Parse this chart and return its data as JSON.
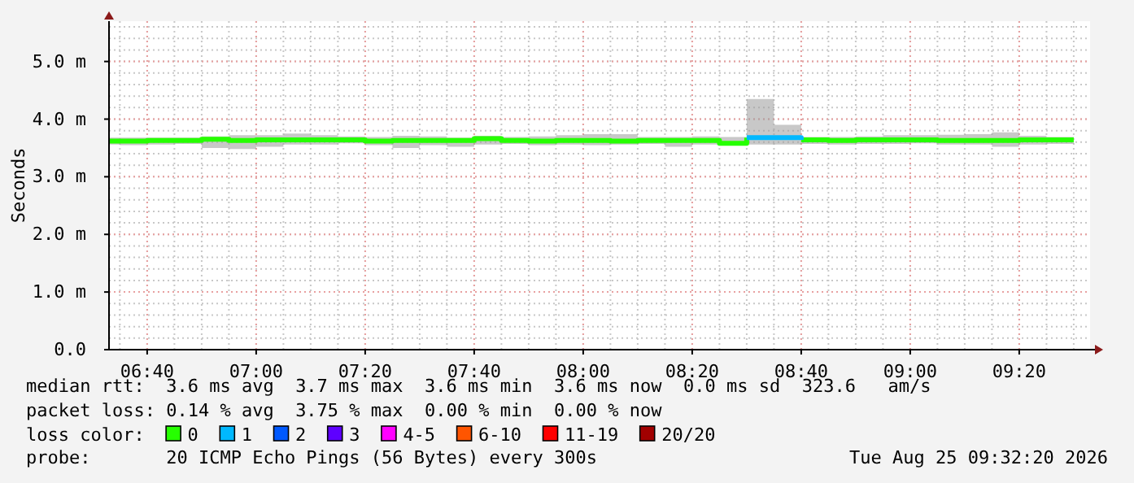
{
  "chart_data": {
    "type": "step",
    "ylabel": "Seconds",
    "legend_title": "loss color:",
    "legend": "bottom",
    "grid": true,
    "xlim": [
      "2026-08-25T06:33",
      "2026-08-25T09:33"
    ],
    "xticks": [
      {
        "value": "2026-08-25T06:40",
        "label": "06:40"
      },
      {
        "value": "2026-08-25T07:00",
        "label": "07:00"
      },
      {
        "value": "2026-08-25T07:20",
        "label": "07:20"
      },
      {
        "value": "2026-08-25T07:40",
        "label": "07:40"
      },
      {
        "value": "2026-08-25T08:00",
        "label": "08:00"
      },
      {
        "value": "2026-08-25T08:20",
        "label": "08:20"
      },
      {
        "value": "2026-08-25T08:40",
        "label": "08:40"
      },
      {
        "value": "2026-08-25T09:00",
        "label": "09:00"
      },
      {
        "value": "2026-08-25T09:20",
        "label": "09:20"
      }
    ],
    "ylim": [
      0,
      5.7
    ],
    "yticks": [
      {
        "value": 0,
        "label": "0.0"
      },
      {
        "value": 1,
        "label": "1.0 m"
      },
      {
        "value": 2,
        "label": "2.0 m"
      },
      {
        "value": 3,
        "label": "3.0 m"
      },
      {
        "value": 4,
        "label": "4.0 m"
      },
      {
        "value": 5,
        "label": "5.0 m"
      }
    ],
    "x": [
      "2026-08-25T06:33",
      "2026-08-25T06:35",
      "2026-08-25T06:40",
      "2026-08-25T06:45",
      "2026-08-25T06:50",
      "2026-08-25T06:55",
      "2026-08-25T07:00",
      "2026-08-25T07:05",
      "2026-08-25T07:10",
      "2026-08-25T07:15",
      "2026-08-25T07:20",
      "2026-08-25T07:25",
      "2026-08-25T07:30",
      "2026-08-25T07:35",
      "2026-08-25T07:40",
      "2026-08-25T07:45",
      "2026-08-25T07:50",
      "2026-08-25T07:55",
      "2026-08-25T08:00",
      "2026-08-25T08:05",
      "2026-08-25T08:10",
      "2026-08-25T08:15",
      "2026-08-25T08:20",
      "2026-08-25T08:25",
      "2026-08-25T08:30",
      "2026-08-25T08:35",
      "2026-08-25T08:40",
      "2026-08-25T08:45",
      "2026-08-25T08:50",
      "2026-08-25T08:55",
      "2026-08-25T09:00",
      "2026-08-25T09:05",
      "2026-08-25T09:10",
      "2026-08-25T09:15",
      "2026-08-25T09:20",
      "2026-08-25T09:25",
      "2026-08-25T09:30"
    ],
    "series": [
      {
        "name": "0",
        "color": "#26ff00",
        "values": [
          3.62,
          3.62,
          3.63,
          3.63,
          3.65,
          3.63,
          3.64,
          3.64,
          3.64,
          3.64,
          3.62,
          3.63,
          3.63,
          3.63,
          3.66,
          3.63,
          3.62,
          3.63,
          3.63,
          3.62,
          3.63,
          3.63,
          3.63,
          3.58,
          3.68,
          null,
          3.64,
          3.63,
          3.64,
          3.64,
          3.64,
          3.63,
          3.63,
          3.63,
          3.64,
          3.64,
          3.64
        ],
        "lower": [
          3.56,
          3.55,
          3.56,
          3.57,
          3.5,
          3.48,
          3.52,
          3.56,
          3.56,
          3.58,
          3.55,
          3.5,
          3.55,
          3.52,
          3.56,
          3.57,
          3.55,
          3.56,
          3.55,
          3.56,
          3.57,
          3.52,
          3.56,
          3.56,
          3.56,
          3.56,
          3.57,
          3.56,
          3.57,
          3.57,
          3.58,
          3.56,
          3.56,
          3.52,
          3.56,
          3.57,
          3.57
        ],
        "upper": [
          3.68,
          3.68,
          3.68,
          3.68,
          3.7,
          3.72,
          3.72,
          3.75,
          3.72,
          3.7,
          3.69,
          3.71,
          3.7,
          3.68,
          3.71,
          3.69,
          3.7,
          3.72,
          3.74,
          3.74,
          3.69,
          3.69,
          3.7,
          3.69,
          4.35,
          3.9,
          3.69,
          3.69,
          3.7,
          3.72,
          3.72,
          3.73,
          3.74,
          3.77,
          3.71,
          3.69,
          3.69
        ]
      },
      {
        "name": "1",
        "color": "#00b8ff",
        "values": [
          null,
          null,
          null,
          null,
          null,
          null,
          null,
          null,
          null,
          null,
          null,
          null,
          null,
          null,
          null,
          null,
          null,
          null,
          null,
          null,
          null,
          null,
          null,
          null,
          3.68,
          3.68,
          3.64,
          null,
          null,
          null,
          null,
          null,
          null,
          null,
          null,
          null,
          null
        ]
      },
      {
        "name": "2",
        "color": "#0059ff",
        "values": [
          null,
          null,
          null,
          null,
          null,
          null,
          null,
          null,
          null,
          null,
          null,
          null,
          null,
          null,
          null,
          null,
          null,
          null,
          null,
          null,
          null,
          null,
          null,
          null,
          null,
          null,
          null,
          null,
          null,
          null,
          null,
          null,
          null,
          null,
          null,
          null,
          null
        ]
      },
      {
        "name": "3",
        "color": "#5e00ff",
        "values": [
          null,
          null,
          null,
          null,
          null,
          null,
          null,
          null,
          null,
          null,
          null,
          null,
          null,
          null,
          null,
          null,
          null,
          null,
          null,
          null,
          null,
          null,
          null,
          null,
          null,
          null,
          null,
          null,
          null,
          null,
          null,
          null,
          null,
          null,
          null,
          null,
          null
        ]
      },
      {
        "name": "4-5",
        "color": "#ff00ff",
        "values": [
          null,
          null,
          null,
          null,
          null,
          null,
          null,
          null,
          null,
          null,
          null,
          null,
          null,
          null,
          null,
          null,
          null,
          null,
          null,
          null,
          null,
          null,
          null,
          null,
          null,
          null,
          null,
          null,
          null,
          null,
          null,
          null,
          null,
          null,
          null,
          null,
          null
        ]
      },
      {
        "name": "6-10",
        "color": "#ff5500",
        "values": [
          null,
          null,
          null,
          null,
          null,
          null,
          null,
          null,
          null,
          null,
          null,
          null,
          null,
          null,
          null,
          null,
          null,
          null,
          null,
          null,
          null,
          null,
          null,
          null,
          null,
          null,
          null,
          null,
          null,
          null,
          null,
          null,
          null,
          null,
          null,
          null,
          null
        ]
      },
      {
        "name": "11-19",
        "color": "#ff0000",
        "values": [
          null,
          null,
          null,
          null,
          null,
          null,
          null,
          null,
          null,
          null,
          null,
          null,
          null,
          null,
          null,
          null,
          null,
          null,
          null,
          null,
          null,
          null,
          null,
          null,
          null,
          null,
          null,
          null,
          null,
          null,
          null,
          null,
          null,
          null,
          null,
          null,
          null
        ]
      },
      {
        "name": "20/20",
        "color": "#a10000",
        "values": [
          null,
          null,
          null,
          null,
          null,
          null,
          null,
          null,
          null,
          null,
          null,
          null,
          null,
          null,
          null,
          null,
          null,
          null,
          null,
          null,
          null,
          null,
          null,
          null,
          null,
          null,
          null,
          null,
          null,
          null,
          null,
          null,
          null,
          null,
          null,
          null,
          null
        ]
      }
    ],
    "annotations": [
      "median rtt:  3.6 ms avg  3.7 ms max  3.6 ms min  3.6 ms now  0.0 ms sd  323.6   am/s",
      "packet loss: 0.14 % avg  3.75 % max  0.00 % min  0.00 % now",
      "probe:       20 ICMP Echo Pings (56 Bytes) every 300s",
      "Tue Aug 25 09:32:20 2026"
    ]
  }
}
